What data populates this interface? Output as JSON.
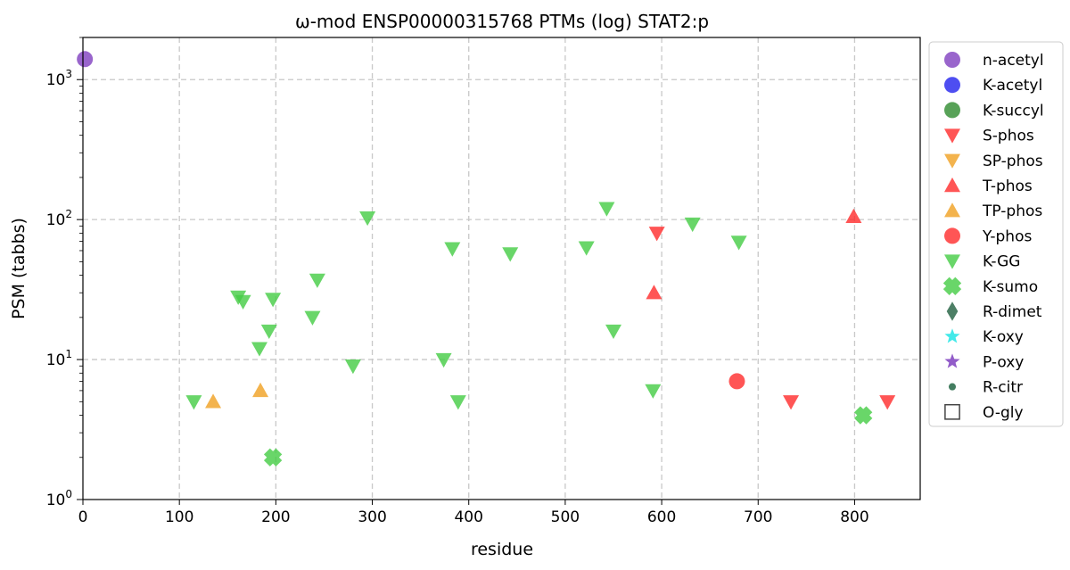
{
  "chart_data": {
    "type": "scatter",
    "title": "ω-mod ENSP00000315768 PTMs (log) STAT2:p",
    "xlabel": "residue",
    "ylabel": "PSM (tabbs)",
    "xlim": [
      0,
      868
    ],
    "ylim": [
      1,
      2000
    ],
    "yscale": "log",
    "x_ticks": [
      0,
      100,
      200,
      300,
      400,
      500,
      600,
      700,
      800
    ],
    "y_ticks": [
      {
        "value": 1,
        "base": "10",
        "exp": "0"
      },
      {
        "value": 10,
        "base": "10",
        "exp": "1"
      },
      {
        "value": 100,
        "base": "10",
        "exp": "2"
      },
      {
        "value": 1000,
        "base": "10",
        "exp": "3"
      }
    ],
    "grid": true,
    "legend_position": "outside-right",
    "series": [
      {
        "name": "n-acetyl",
        "marker": "circle",
        "color": "#7f3fbf",
        "points": [
          [
            2,
            1400
          ]
        ]
      },
      {
        "name": "K-acetyl",
        "marker": "circle",
        "color": "#2222ee",
        "points": []
      },
      {
        "name": "K-succyl",
        "marker": "circle",
        "color": "#2e8b2e",
        "points": []
      },
      {
        "name": "S-phos",
        "marker": "triangle-down",
        "color": "#ff2a2a",
        "points": [
          [
            595,
            80
          ],
          [
            734,
            5
          ],
          [
            834,
            5
          ]
        ]
      },
      {
        "name": "SP-phos",
        "marker": "triangle-down",
        "color": "#f0a020",
        "points": []
      },
      {
        "name": "T-phos",
        "marker": "triangle-up",
        "color": "#ff2a2a",
        "points": [
          [
            592,
            30
          ],
          [
            799,
            105
          ]
        ]
      },
      {
        "name": "TP-phos",
        "marker": "triangle-up",
        "color": "#f0a020",
        "points": [
          [
            135,
            5
          ],
          [
            184,
            6
          ]
        ]
      },
      {
        "name": "Y-phos",
        "marker": "circle",
        "color": "#ff2a2a",
        "points": [
          [
            678,
            7
          ]
        ]
      },
      {
        "name": "K-GG",
        "marker": "triangle-down",
        "color": "#44cc44",
        "points": [
          [
            115,
            5
          ],
          [
            161,
            28
          ],
          [
            166,
            26
          ],
          [
            183,
            12
          ],
          [
            193,
            16
          ],
          [
            197,
            27
          ],
          [
            238,
            20
          ],
          [
            243,
            37
          ],
          [
            280,
            9
          ],
          [
            295,
            103
          ],
          [
            374,
            10
          ],
          [
            383,
            62
          ],
          [
            389,
            5
          ],
          [
            443,
            57
          ],
          [
            522,
            63
          ],
          [
            543,
            120
          ],
          [
            550,
            16
          ],
          [
            591,
            6
          ],
          [
            632,
            93
          ],
          [
            680,
            69
          ]
        ]
      },
      {
        "name": "K-sumo",
        "marker": "x",
        "color": "#44cc44",
        "points": [
          [
            197,
            2
          ],
          [
            809,
            4
          ]
        ]
      },
      {
        "name": "R-dimet",
        "marker": "diamond",
        "color": "#1f5f3f",
        "points": []
      },
      {
        "name": "K-oxy",
        "marker": "star",
        "color": "#22e5e5",
        "points": []
      },
      {
        "name": "P-oxy",
        "marker": "star",
        "color": "#7f3fbf",
        "points": []
      },
      {
        "name": "R-citr",
        "marker": "small-circle",
        "color": "#2f6f4f",
        "points": []
      },
      {
        "name": "O-gly",
        "marker": "square-open",
        "color": "#444444",
        "points": []
      }
    ]
  }
}
